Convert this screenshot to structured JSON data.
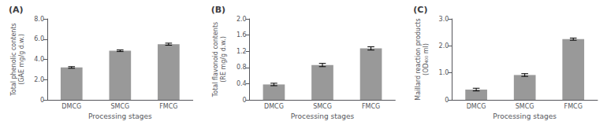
{
  "chart_data": [
    {
      "type": "bar",
      "title": "(A)",
      "categories": [
        "DMCG",
        "SMCG",
        "FMCG"
      ],
      "values": [
        3.2,
        4.85,
        5.5
      ],
      "errors": [
        0.08,
        0.08,
        0.1
      ],
      "ylabel": "Total phenolic contents\n(GAE mg/g d.w.)",
      "xlabel": "Processing stages",
      "color": "#999999",
      "ylim": [
        0,
        8.0
      ],
      "yticks": [
        0,
        {
          "value": 2,
          "label": "2.0"
        },
        {
          "value": 4,
          "label": "4.0"
        },
        {
          "value": 6,
          "label": "6.0"
        },
        {
          "value": 8,
          "label": "8.0"
        }
      ],
      "grid": false
    },
    {
      "type": "bar",
      "title": "(B)",
      "categories": [
        "DMCG",
        "SMCG",
        "FMCG"
      ],
      "values": [
        0.38,
        0.86,
        1.27
      ],
      "errors": [
        0.03,
        0.04,
        0.04
      ],
      "ylabel": "Total flavonoid contents\n(RE mg/g d.w.)",
      "xlabel": "Processing stages",
      "color": "#999999",
      "ylim": [
        0,
        2.0
      ],
      "yticks": [
        0,
        0.4,
        0.8,
        1.2,
        1.6,
        {
          "value": 2,
          "label": "2.0"
        }
      ],
      "grid": false
    },
    {
      "type": "bar",
      "title": "(C)",
      "categories": [
        "DMCG",
        "SMCG",
        "FMCG"
      ],
      "values": [
        0.38,
        0.92,
        2.25
      ],
      "errors": [
        0.05,
        0.05,
        0.04
      ],
      "ylabel": "Maillard reaction products\n(OD₄₀₀ ml)",
      "xlabel": "Processing stages",
      "color": "#999999",
      "ylim": [
        0,
        3.0
      ],
      "yticks": [
        0,
        {
          "value": 1,
          "label": "1.0"
        },
        {
          "value": 2,
          "label": "2.0"
        },
        {
          "value": 3,
          "label": "3.0"
        }
      ],
      "grid": false
    }
  ]
}
